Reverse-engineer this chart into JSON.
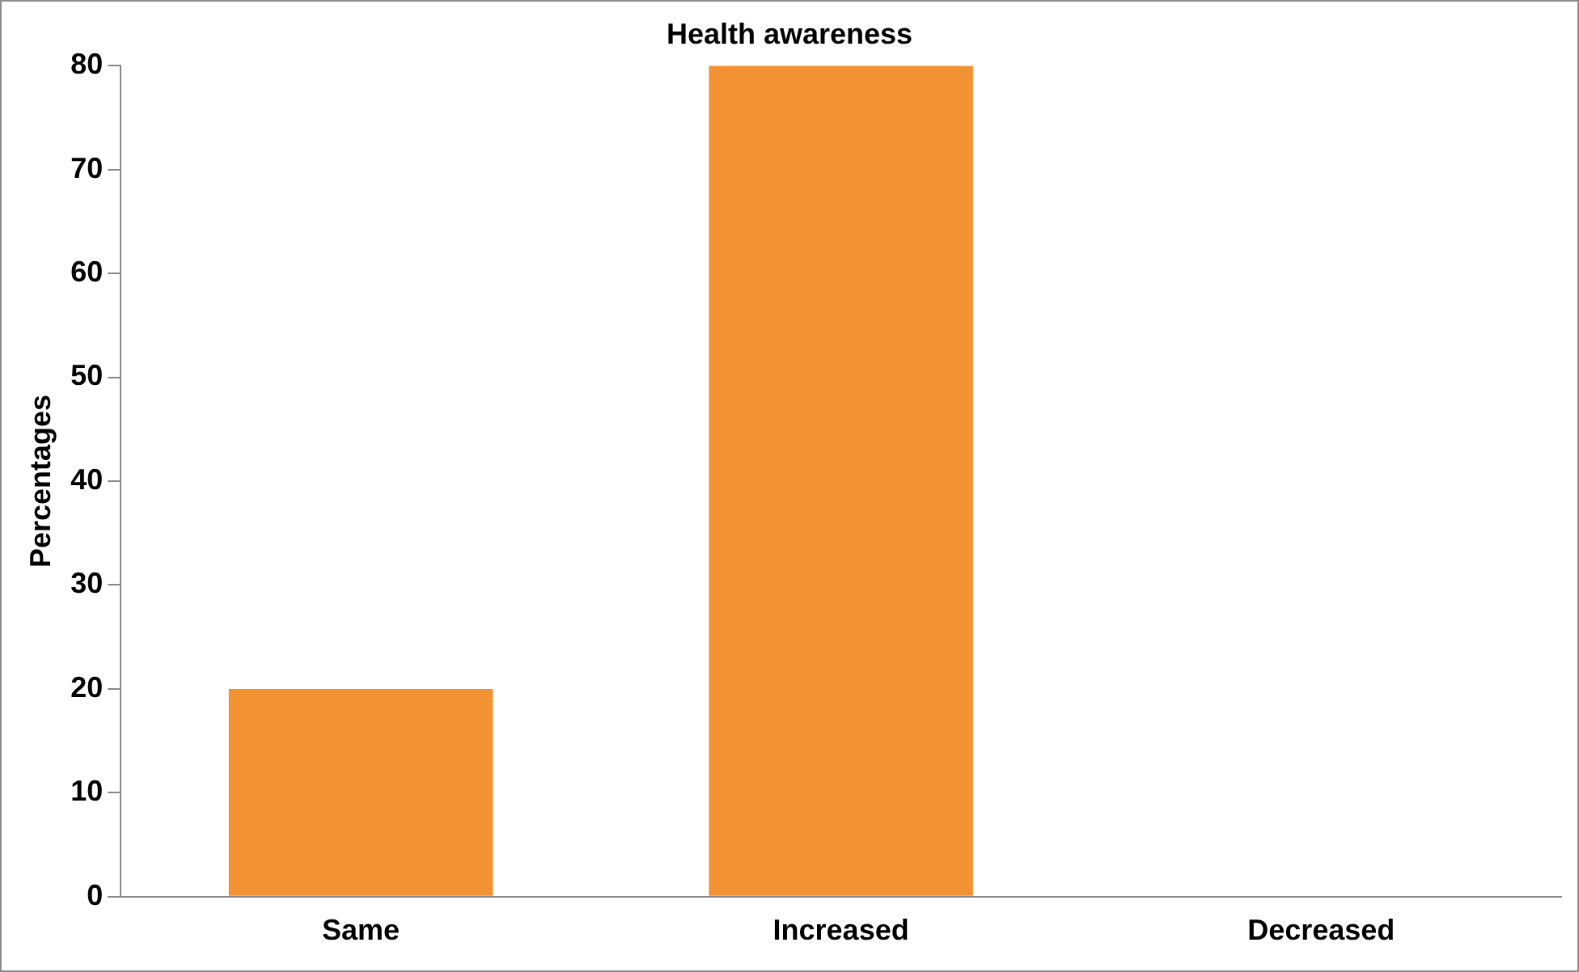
{
  "chart_data": {
    "type": "bar",
    "title": "Health awareness",
    "ylabel": "Percentages",
    "categories": [
      "Same",
      "Increased",
      "Decreased"
    ],
    "values": [
      20,
      80,
      0
    ],
    "color": "#f39232",
    "ylim": [
      0,
      80
    ],
    "yticks": [
      0,
      10,
      20,
      30,
      40,
      50,
      60,
      70,
      80
    ],
    "grid": false,
    "legend": false
  }
}
